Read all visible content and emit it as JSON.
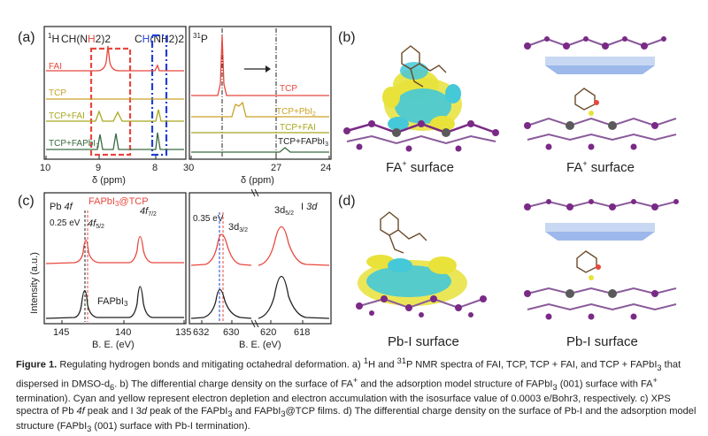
{
  "panels": {
    "a": {
      "label": "(a)",
      "nmr_h": {
        "title_prefix": "1H",
        "title_nuc_sup": "1",
        "title_nuc": "H",
        "header_group1_pre": "CH(N",
        "header_group1_h": "H",
        "header_group1_post": "2)2",
        "header_group2_c": "C",
        "header_group2_h": "H",
        "header_group2_post": "(NH2)2",
        "traces": [
          "FAI",
          "TCP",
          "TCP+FAI",
          "TCP+FAPbI3"
        ],
        "trace_sub": "3",
        "xticks": [
          "10",
          "9",
          "8"
        ],
        "xlabel": "δ (ppm)"
      },
      "nmr_p": {
        "title_sup": "31",
        "title_nuc": "P",
        "traces": [
          "TCP",
          "TCP+PbI2",
          "TCP+FAI",
          "TCP+FAPbI3"
        ],
        "xticks": [
          "30",
          "27",
          "24"
        ],
        "xlabel": "δ (ppm)"
      }
    },
    "b": {
      "label": "(b)",
      "left_caption": "FA+ surface",
      "right_caption": "FA+ surface"
    },
    "c": {
      "label": "(c)",
      "ylabel": "Intensity (a.u.)",
      "left": {
        "title_main": "Pb",
        "title_orb": "4f",
        "legend_top": "FAPbI3@TCP",
        "shift": "0.25 eV",
        "peak1_main": "4f",
        "peak1_sub": "5/2",
        "peak2_main": "4f",
        "peak2_sub": "7/2",
        "legend_bottom": "FAPbI3",
        "xticks": [
          "145",
          "140",
          "135"
        ]
      },
      "right": {
        "title_main": "I",
        "title_orb": "3d",
        "shift": "0.35 eV",
        "peak1_main": "3d",
        "peak1_sub": "3/2",
        "peak2_main": "3d",
        "peak2_sub": "5/2",
        "xticks": [
          "632",
          "630",
          "620",
          "618"
        ]
      },
      "xlabel": "B. E. (eV)"
    },
    "d": {
      "label": "(d)",
      "left_caption": "Pb-I surface",
      "right_caption": "Pb-I surface"
    }
  },
  "caption": {
    "lead": "Figure 1.",
    "text_1": " Regulating hydrogen bonds and mitigating octahedral deformation. a) ",
    "text_2": "H and ",
    "text_3": "P NMR spectra of FAI, TCP, TCP + FAI, and TCP + FAPbI",
    "text_4": " that dispersed in DMSO-d",
    "text_5": ". b) The differential charge density on the surface of FA",
    "text_6": " and the adsorption model structure of FAPbI",
    "text_7": " (001) surface with FA",
    "text_8": " termination). Cyan and yellow represent electron depletion and electron accumulation with the isosurface value of 0.0003 e/Bohr3, respectively. c) XPS spectra of Pb ",
    "text_9": "4f",
    "text_10": " peak and I 3",
    "text_11": "d",
    "text_12": " peak of the FAPbI",
    "text_13": " and FAPbI",
    "text_14": "@TCP films. d) The differential charge density on the surface of Pb-I and the adsorption model structure (FAPbI",
    "text_15": " (001) surface with Pb-I termination).",
    "sup_1": "1",
    "sup_31": "31",
    "sub_3": "3",
    "sub_6": "6",
    "sup_plus": "+"
  },
  "colors": {
    "red": "#e8473d",
    "gold": "#c9a227",
    "olive": "#a8a820",
    "green": "#3a6a40",
    "black": "#222222",
    "blue": "#1f3fd6",
    "cyan": "#45c8d8",
    "yellow": "#e8e23a",
    "iodide": "#7a2a86",
    "lead": "#5a5a5a"
  }
}
